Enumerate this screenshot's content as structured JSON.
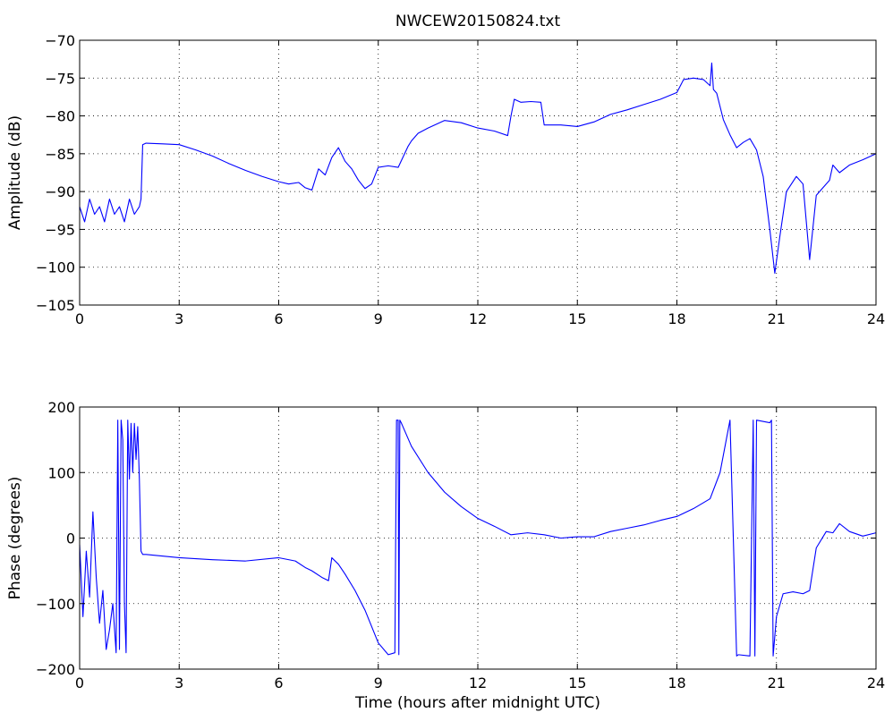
{
  "figure_title": "NWCEW20150824.txt",
  "chart_data": [
    {
      "type": "line",
      "title": "NWCEW20150824.txt",
      "xlabel": "",
      "ylabel": "Amplitude (dB)",
      "xlim": [
        0,
        24
      ],
      "ylim": [
        -105,
        -70
      ],
      "xticks": [
        0,
        3,
        6,
        9,
        12,
        15,
        18,
        21,
        24
      ],
      "yticks": [
        -105,
        -100,
        -95,
        -90,
        -85,
        -80,
        -75,
        -70
      ],
      "xtick_labels": [
        "0",
        "3",
        "6",
        "9",
        "12",
        "15",
        "18",
        "21",
        "24"
      ],
      "ytick_labels": [
        "−105",
        "−100",
        "−95",
        "−90",
        "−85",
        "−80",
        "−75",
        "−70"
      ],
      "grid": true,
      "color": "#0000ff",
      "series": [
        {
          "x": [
            0,
            0.15,
            0.3,
            0.45,
            0.6,
            0.75,
            0.9,
            1.05,
            1.2,
            1.35,
            1.5,
            1.65,
            1.8,
            1.85,
            1.9,
            2.0,
            2.5,
            3.0,
            3.5,
            4.0,
            4.5,
            5.0,
            5.5,
            6.0,
            6.3,
            6.6,
            6.8,
            7.0,
            7.2,
            7.4,
            7.6,
            7.8,
            8.0,
            8.2,
            8.4,
            8.6,
            8.8,
            9.0,
            9.3,
            9.6,
            9.9,
            10.0,
            10.2,
            10.5,
            11.0,
            11.5,
            12.0,
            12.5,
            12.9,
            13.0,
            13.1,
            13.3,
            13.6,
            13.9,
            14.0,
            14.5,
            15.0,
            15.5,
            16.0,
            16.5,
            17.0,
            17.5,
            18.0,
            18.2,
            18.5,
            18.8,
            19.0,
            19.05,
            19.1,
            19.2,
            19.4,
            19.6,
            19.8,
            20.0,
            20.2,
            20.4,
            20.6,
            20.8,
            20.95,
            21.1,
            21.3,
            21.6,
            21.8,
            22.0,
            22.2,
            22.4,
            22.6,
            22.7,
            22.9,
            23.2,
            23.6,
            24.0
          ],
          "y": [
            -92,
            -94,
            -91,
            -93,
            -92,
            -94,
            -91,
            -93,
            -92,
            -94,
            -91,
            -93,
            -92,
            -91,
            -83.8,
            -83.6,
            -83.7,
            -83.8,
            -84.5,
            -85.3,
            -86.3,
            -87.2,
            -88.0,
            -88.7,
            -89.0,
            -88.8,
            -89.5,
            -89.8,
            -87.0,
            -87.8,
            -85.5,
            -84.2,
            -86.0,
            -87.0,
            -88.5,
            -89.6,
            -89.0,
            -86.8,
            -86.6,
            -86.8,
            -84.0,
            -83.3,
            -82.3,
            -81.6,
            -80.6,
            -80.9,
            -81.6,
            -82.0,
            -82.6,
            -80.0,
            -77.8,
            -78.2,
            -78.1,
            -78.2,
            -81.2,
            -81.2,
            -81.4,
            -80.8,
            -79.8,
            -79.2,
            -78.5,
            -77.8,
            -76.9,
            -75.2,
            -75.0,
            -75.2,
            -76.0,
            -73.0,
            -76.5,
            -77.0,
            -80.5,
            -82.5,
            -84.2,
            -83.5,
            -83.0,
            -84.5,
            -88.0,
            -95.0,
            -100.8,
            -96.0,
            -90.0,
            -88.0,
            -89.0,
            -99.0,
            -90.5,
            -89.5,
            -88.5,
            -86.5,
            -87.5,
            -86.5,
            -85.8,
            -85.0
          ]
        }
      ]
    },
    {
      "type": "line",
      "title": "",
      "xlabel": "Time (hours after midnight UTC)",
      "ylabel": "Phase (degrees)",
      "xlim": [
        0,
        24
      ],
      "ylim": [
        -200,
        200
      ],
      "xticks": [
        0,
        3,
        6,
        9,
        12,
        15,
        18,
        21,
        24
      ],
      "yticks": [
        -200,
        -100,
        0,
        100,
        200
      ],
      "xtick_labels": [
        "0",
        "3",
        "6",
        "9",
        "12",
        "15",
        "18",
        "21",
        "24"
      ],
      "ytick_labels": [
        "−200",
        "−100",
        "0",
        "100",
        "200"
      ],
      "grid": true,
      "color": "#0000ff",
      "series": [
        {
          "x": [
            0,
            0.1,
            0.2,
            0.3,
            0.4,
            0.5,
            0.6,
            0.7,
            0.8,
            0.9,
            1.0,
            1.1,
            1.15,
            1.2,
            1.25,
            1.3,
            1.35,
            1.4,
            1.45,
            1.5,
            1.55,
            1.6,
            1.65,
            1.7,
            1.75,
            1.8,
            1.85,
            1.9,
            2.0,
            3.0,
            4.0,
            5.0,
            6.0,
            6.5,
            6.8,
            7.0,
            7.3,
            7.5,
            7.6,
            7.8,
            8.0,
            8.3,
            8.6,
            9.0,
            9.3,
            9.5,
            9.55,
            9.6,
            9.62,
            9.65,
            9.7,
            10.0,
            10.5,
            11.0,
            11.5,
            12.0,
            12.5,
            13.0,
            13.5,
            14.0,
            14.5,
            15.0,
            15.5,
            16.0,
            16.5,
            17.0,
            17.5,
            18.0,
            18.5,
            19.0,
            19.3,
            19.6,
            19.8,
            19.85,
            20.2,
            20.3,
            20.35,
            20.4,
            20.8,
            20.85,
            20.9,
            21.0,
            21.2,
            21.5,
            21.8,
            22.0,
            22.2,
            22.5,
            22.7,
            22.9,
            23.2,
            23.6,
            24.0
          ],
          "y": [
            -10,
            -120,
            -20,
            -90,
            40,
            -60,
            -130,
            -80,
            -170,
            -140,
            -100,
            -175,
            180,
            -170,
            180,
            150,
            -100,
            -175,
            180,
            90,
            175,
            100,
            175,
            120,
            170,
            90,
            -20,
            -25,
            -25,
            -30,
            -33,
            -35,
            -30,
            -35,
            -45,
            -50,
            -60,
            -65,
            -30,
            -40,
            -55,
            -80,
            -110,
            -160,
            -178,
            -175,
            180,
            180,
            -178,
            180,
            175,
            140,
            100,
            70,
            48,
            30,
            18,
            5,
            8,
            5,
            0,
            2,
            2,
            10,
            15,
            20,
            27,
            33,
            45,
            60,
            100,
            180,
            -180,
            -178,
            -180,
            180,
            -180,
            180,
            176,
            180,
            -180,
            -120,
            -85,
            -82,
            -85,
            -80,
            -15,
            10,
            8,
            22,
            10,
            3,
            8
          ]
        }
      ]
    }
  ]
}
